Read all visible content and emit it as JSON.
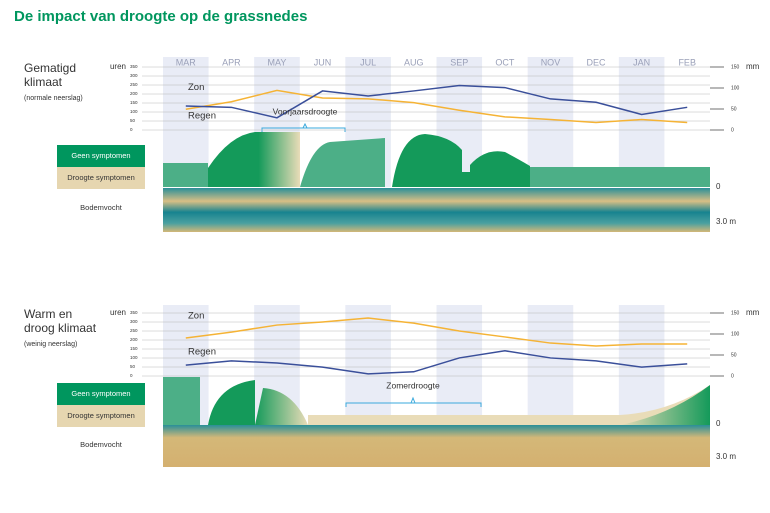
{
  "title": "De impact van droogte op de grassnedes",
  "chart_data": [
    {
      "type": "line",
      "title_lines": [
        "Gematigd",
        "klimaat"
      ],
      "subtitle": "(normale neerslag)",
      "categories": [
        "MAR",
        "APR",
        "MAY",
        "JUN",
        "JUL",
        "AUG",
        "SEP",
        "OCT",
        "NOV",
        "DEC",
        "JAN",
        "FEB"
      ],
      "ylabel": "uren",
      "y2label": "mm",
      "ylim": [
        0,
        350
      ],
      "yticks": [
        0,
        50,
        100,
        150,
        200,
        250,
        300,
        350
      ],
      "y2lim": [
        0,
        150
      ],
      "y2ticks": [
        0,
        50,
        100,
        150
      ],
      "series": [
        {
          "name": "Zon",
          "color": "#f5b335",
          "values": [
            115,
            157,
            220,
            178,
            173,
            152,
            110,
            73,
            58,
            42,
            58,
            42
          ]
        },
        {
          "name": "Regen",
          "color": "#3a4f9a",
          "axis": "y2",
          "values": [
            57,
            54,
            29,
            93,
            81,
            93,
            106,
            101,
            74,
            66,
            37,
            54
          ]
        }
      ],
      "annotation": "Voorjaarsdroogte",
      "legend_labels": [
        "Geen symptomen",
        "Droogte symptomen"
      ],
      "soil_label": "Bodemvocht",
      "depth_labels": [
        "0",
        "3.0 m"
      ]
    },
    {
      "type": "line",
      "title_lines": [
        "Warm en",
        "droog klimaat"
      ],
      "subtitle": "(weinig neerslag)",
      "categories": [
        null,
        null,
        null,
        null,
        null,
        null,
        null,
        null,
        null,
        null,
        null,
        null
      ],
      "ylabel": "uren",
      "y2label": "mm",
      "ylim": [
        0,
        350
      ],
      "yticks": [
        0,
        50,
        100,
        150,
        200,
        250,
        300,
        350
      ],
      "y2lim": [
        0,
        150
      ],
      "y2ticks": [
        0,
        50,
        100,
        150
      ],
      "series": [
        {
          "name": "Zon",
          "color": "#f5b335",
          "values": [
            211,
            244,
            283,
            300,
            322,
            294,
            250,
            217,
            183,
            167,
            178,
            178
          ]
        },
        {
          "name": "Regen",
          "color": "#3a4f9a",
          "axis": "y2",
          "values": [
            26,
            36,
            31,
            21,
            5,
            10,
            43,
            60,
            43,
            36,
            21,
            29
          ]
        }
      ],
      "annotation": "Zomerdroogte",
      "legend_labels": [
        "Geen symptomen",
        "Droogte symptomen"
      ],
      "soil_label": "Bodemvocht",
      "depth_labels": [
        "0",
        "3.0 m"
      ]
    }
  ]
}
